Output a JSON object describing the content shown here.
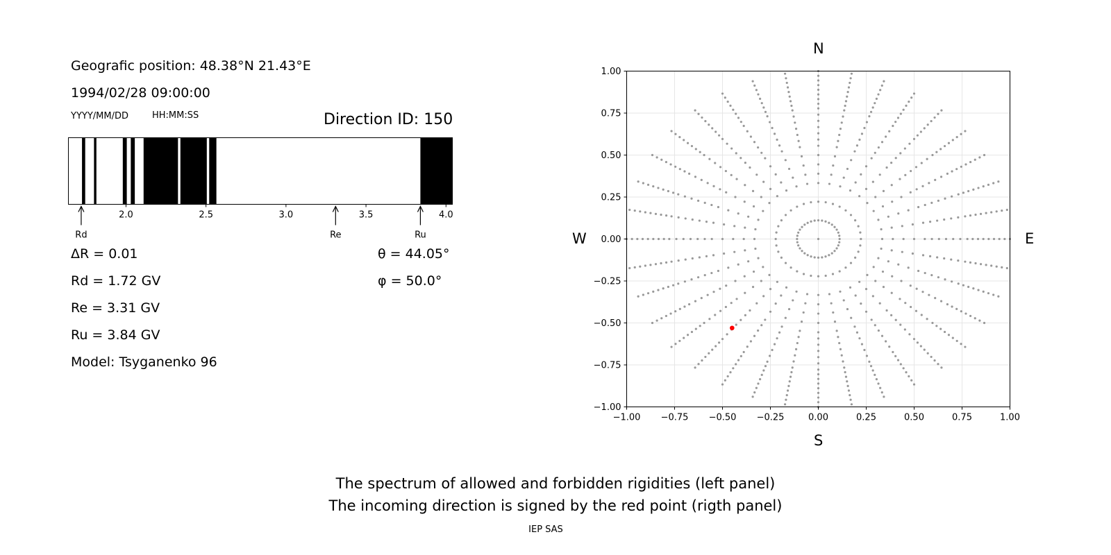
{
  "left_panel": {
    "geo_position": "Geografic position: 48.38°N 21.43°E",
    "datetime": "1994/02/28 09:00:00",
    "date_format": "YYYY/MM/DD",
    "time_format": "HH:MM:SS",
    "direction_id": "Direction ID: 150",
    "delta_r": "ΔR = 0.01",
    "rd": "Rd = 1.72 GV",
    "re": "Re = 3.31 GV",
    "ru": "Ru = 3.84 GV",
    "model": "Model: Tsyganenko 96",
    "theta": "θ = 44.05°",
    "phi": "φ = 50.0°"
  },
  "right_panel": {
    "north": "N",
    "south": "S",
    "west": "W",
    "east": "E"
  },
  "caption": {
    "line1": "The spectrum of allowed and forbidden rigidities (left panel)",
    "line2": "The incoming direction is signed by the red point (rigth panel)",
    "footer": "IEP SAS"
  },
  "chart_data": [
    {
      "type": "bar",
      "title": "",
      "xlim": [
        1.64,
        4.04
      ],
      "xticks": [
        "2.0",
        "2.5",
        "3.0",
        "3.5",
        "4.0"
      ],
      "tick_values": [
        2.0,
        2.5,
        3.0,
        3.5,
        4.0
      ],
      "forbidden_bands": [
        [
          1.725,
          1.745
        ],
        [
          1.8,
          1.815
        ],
        [
          1.98,
          2.005
        ],
        [
          2.03,
          2.055
        ],
        [
          2.11,
          2.325
        ],
        [
          2.34,
          2.505
        ],
        [
          2.52,
          2.565
        ],
        [
          3.84,
          4.04
        ]
      ],
      "markers": [
        {
          "label": "Rd",
          "value": 1.72
        },
        {
          "label": "Re",
          "value": 3.31
        },
        {
          "label": "Ru",
          "value": 3.84
        }
      ],
      "colors": {
        "forbidden": "#000000",
        "allowed": "#ffffff"
      }
    },
    {
      "type": "scatter",
      "title": "",
      "xlim": [
        -1.0,
        1.0
      ],
      "ylim": [
        -1.0,
        1.0
      ],
      "xticks": [
        "−1.00",
        "−0.75",
        "−0.50",
        "−0.25",
        "0.00",
        "0.25",
        "0.50",
        "0.75",
        "1.00"
      ],
      "yticks": [
        "−1.00",
        "−0.75",
        "−0.50",
        "−0.25",
        "0.00",
        "0.25",
        "0.50",
        "0.75",
        "1.00"
      ],
      "tick_values": [
        -1.0,
        -0.75,
        -0.5,
        -0.25,
        0.0,
        0.25,
        0.5,
        0.75,
        1.0
      ],
      "grid": true,
      "pattern": {
        "radial_step_deg": 10,
        "azimuth_step_deg": 10,
        "theta_max_deg": 90
      },
      "highlight": {
        "x": -0.45,
        "y": -0.53
      },
      "colors": {
        "points": "#999999",
        "highlight": "#ff0000",
        "grid": "#e6e6e6"
      }
    }
  ]
}
